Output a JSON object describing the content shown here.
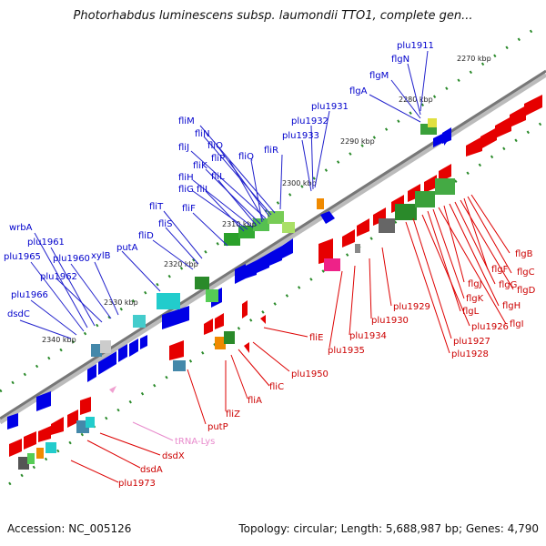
{
  "title": "Photorhabdus luminescens subsp. laumondii TTO1, complete gen...",
  "footer": {
    "accession": "Accession: NC_005126",
    "topology": "Topology: circular; Length: 5,688,987 bp; Genes: 4,790"
  },
  "colors": {
    "forward": "#0000e6",
    "reverse": "#e60000",
    "trna": "#f0a0d0",
    "backbone": "#888888",
    "ticks": "#2a8a2a"
  },
  "kbp_labels": [
    "2270 kbp",
    "2280 kbp",
    "2290 kbp",
    "2300 kbp",
    "2310 kbp",
    "2320 kbp",
    "2330 kbp",
    "2340 kbp"
  ],
  "blue_labels": [
    "plu1911",
    "flgN",
    "flgM",
    "flgA",
    "plu1931",
    "plu1932",
    "plu1933",
    "fliR",
    "fliM",
    "fliN",
    "fliO",
    "fliJ",
    "fliP",
    "fliQ",
    "fliK",
    "fliL",
    "fliH",
    "fliG",
    "fliI",
    "fliF",
    "fliT",
    "fliS",
    "fliD",
    "wrbA",
    "plu1961",
    "plu1965",
    "plu1960",
    "xylB",
    "putA",
    "plu1962",
    "plu1966",
    "dsdC"
  ],
  "red_labels": [
    "flgB",
    "flgC",
    "flgF",
    "flgD",
    "flgG",
    "flgH",
    "flgJ",
    "flgI",
    "flgK",
    "flgL",
    "plu1926",
    "plu1927",
    "plu1928",
    "plu1929",
    "plu1930",
    "plu1934",
    "plu1935",
    "fliE",
    "fliC",
    "plu1950",
    "fliA",
    "fliZ",
    "putP",
    "dsdX",
    "dsdA",
    "plu1973"
  ],
  "trna_labels": [
    "tRNA-Lys"
  ]
}
